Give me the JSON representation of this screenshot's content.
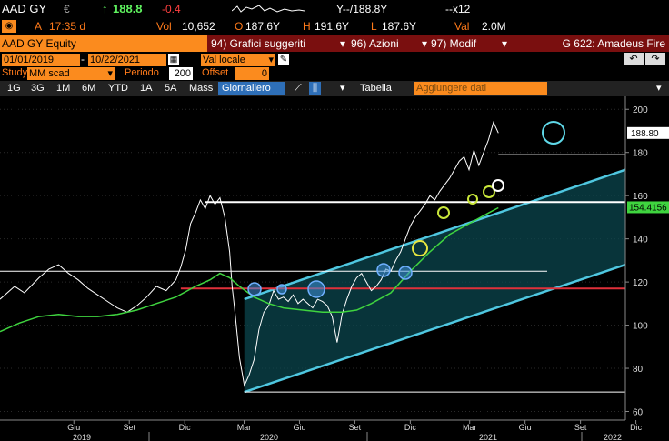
{
  "quote": {
    "ticker": "AAD GY",
    "currency": "€",
    "up_arrow": "↑",
    "last_price": "188.8",
    "change": "-0.4",
    "time_label": "A",
    "time": "17:35 d",
    "vol_label": "Vol",
    "vol": "10,652",
    "open_label": "O",
    "open": "187.6Y",
    "high_label": "H",
    "high": "191.6Y",
    "low_label": "L",
    "low": "187.6Y",
    "value_label": "Val",
    "value": "2.0M",
    "bid_ask": "Y--/188.8Y",
    "size": "--x12"
  },
  "title_bar": {
    "security": "AAD GY Equity",
    "menu_graphs": "94) Grafici suggeriti",
    "menu_actions": "96) Azioni",
    "menu_modify": "97) Modif",
    "chart_name": "G 622: Amadeus Fire"
  },
  "controls": {
    "date_from": "01/01/2019",
    "date_to": "10/22/2021",
    "currency_select": "Val locale",
    "study_label": "Study",
    "study_value": "MM scad",
    "period_label": "Periodo",
    "period_value": "200",
    "offset_label": "Offset",
    "offset_value": "0"
  },
  "toolbar": {
    "ranges": [
      "1G",
      "3G",
      "1M",
      "6M",
      "YTD",
      "1A",
      "5A",
      "Mass"
    ],
    "frequency": "Giornaliero",
    "table_label": "Tabella",
    "add_data_placeholder": "Aggiungere dati"
  },
  "colors": {
    "price_line": "#ffffff",
    "moving_average": "#3fd43f",
    "channel": "#4fc7e0",
    "support_red": "#e0303a",
    "orange": "#fb8b1e",
    "blue_circle": "#3f8fd8",
    "yellow_circle": "#e6e640"
  },
  "chart_data": {
    "type": "line",
    "x_tick_labels": [
      "Giu",
      "Set",
      "Dic",
      "Mar",
      "Giu",
      "Set",
      "Dic",
      "Mar",
      "Giu",
      "Set",
      "Dic"
    ],
    "year_labels": [
      "2019",
      "2020",
      "2021",
      "2022"
    ],
    "y_ticks": [
      60,
      80,
      100,
      120,
      140,
      160,
      180,
      200
    ],
    "ylim": [
      56,
      206
    ],
    "last_price_label": "188.80",
    "ma_label": "154.4156",
    "series": [
      {
        "name": "price",
        "points": [
          [
            0,
            112
          ],
          [
            3,
            118
          ],
          [
            5,
            115
          ],
          [
            8,
            122
          ],
          [
            10,
            126
          ],
          [
            12,
            128
          ],
          [
            14,
            124
          ],
          [
            16,
            121
          ],
          [
            18,
            117
          ],
          [
            20,
            114
          ],
          [
            22,
            111
          ],
          [
            24,
            108
          ],
          [
            26,
            106
          ],
          [
            28,
            109
          ],
          [
            30,
            113
          ],
          [
            32,
            118
          ],
          [
            34,
            116
          ],
          [
            36,
            121
          ],
          [
            37,
            127
          ],
          [
            38,
            135
          ],
          [
            39,
            147
          ],
          [
            40,
            152
          ],
          [
            41,
            158
          ],
          [
            42,
            154
          ],
          [
            43,
            160
          ],
          [
            44,
            156
          ],
          [
            45,
            159
          ],
          [
            46,
            150
          ],
          [
            47,
            134
          ],
          [
            47.5,
            118
          ],
          [
            48,
            108
          ],
          [
            49,
            85
          ],
          [
            50,
            72
          ],
          [
            51,
            77
          ],
          [
            52,
            84
          ],
          [
            53,
            98
          ],
          [
            54,
            106
          ],
          [
            55,
            109
          ],
          [
            56,
            116
          ],
          [
            57,
            112
          ],
          [
            58,
            113
          ],
          [
            59,
            111
          ],
          [
            60,
            114
          ],
          [
            61,
            110
          ],
          [
            62,
            112
          ],
          [
            63,
            110
          ],
          [
            64,
            108
          ],
          [
            65,
            112
          ],
          [
            66,
            111
          ],
          [
            67,
            109
          ],
          [
            68,
            104
          ],
          [
            69,
            92
          ],
          [
            70,
            105
          ],
          [
            71,
            112
          ],
          [
            72,
            118
          ],
          [
            73,
            122
          ],
          [
            74,
            124
          ],
          [
            75,
            120
          ],
          [
            76,
            116
          ],
          [
            77,
            118
          ],
          [
            78,
            121
          ],
          [
            79,
            126
          ],
          [
            80,
            125
          ],
          [
            81,
            130
          ],
          [
            82,
            134
          ],
          [
            83,
            140
          ],
          [
            84,
            146
          ],
          [
            85,
            150
          ],
          [
            86,
            153
          ],
          [
            87,
            156
          ],
          [
            88,
            160
          ],
          [
            89,
            158
          ],
          [
            90,
            162
          ],
          [
            91,
            165
          ],
          [
            92,
            168
          ],
          [
            93,
            172
          ],
          [
            94,
            176
          ],
          [
            95,
            178
          ],
          [
            96,
            172
          ],
          [
            97,
            181
          ],
          [
            98,
            174
          ],
          [
            99,
            180
          ],
          [
            100,
            186
          ],
          [
            101,
            194
          ],
          [
            102,
            189
          ]
        ]
      },
      {
        "name": "MM scad",
        "points": [
          [
            0,
            97
          ],
          [
            4,
            101
          ],
          [
            8,
            104
          ],
          [
            12,
            105
          ],
          [
            16,
            104
          ],
          [
            20,
            104
          ],
          [
            24,
            105
          ],
          [
            28,
            107
          ],
          [
            32,
            110
          ],
          [
            36,
            113
          ],
          [
            40,
            118
          ],
          [
            43,
            121
          ],
          [
            45,
            124
          ],
          [
            47,
            122
          ],
          [
            49,
            118
          ],
          [
            52,
            113
          ],
          [
            55,
            110
          ],
          [
            58,
            108
          ],
          [
            62,
            107
          ],
          [
            66,
            106
          ],
          [
            70,
            106
          ],
          [
            73,
            107
          ],
          [
            76,
            110
          ],
          [
            80,
            115
          ],
          [
            84,
            125
          ],
          [
            88,
            134
          ],
          [
            92,
            142
          ],
          [
            96,
            147
          ],
          [
            100,
            152
          ],
          [
            102,
            154.4
          ]
        ]
      }
    ],
    "annotations": {
      "channel_lower": [
        [
          50,
          69
        ],
        [
          128,
          128
        ]
      ],
      "channel_upper": [
        [
          50,
          112
        ],
        [
          128,
          172
        ]
      ],
      "red_support": 117,
      "white_levels": [
        {
          "y": 125,
          "from": 0,
          "to": 112
        },
        {
          "y": 157,
          "from": 42,
          "to": 128
        },
        {
          "y": 179,
          "from": 102,
          "to": 128
        },
        {
          "y": 69,
          "from": 50,
          "to": 128
        }
      ]
    }
  }
}
